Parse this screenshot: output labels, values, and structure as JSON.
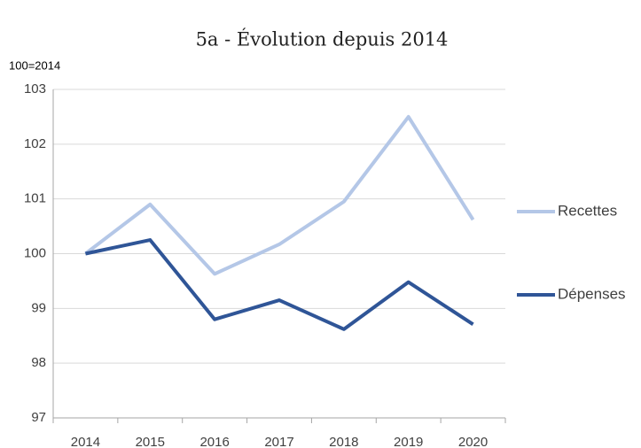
{
  "chart_data": {
    "type": "line",
    "title": "5a - Évolution depuis 2014",
    "y_label": "100=2014",
    "categories": [
      "2014",
      "2015",
      "2016",
      "2017",
      "2018",
      "2019",
      "2020"
    ],
    "series": [
      {
        "name": "Recettes",
        "color": "#b4c7e7",
        "values": [
          100,
          100.9,
          99.63,
          100.17,
          100.95,
          102.5,
          100.62
        ]
      },
      {
        "name": "Dépenses",
        "color": "#2f5597",
        "values": [
          100,
          100.25,
          98.8,
          99.15,
          98.62,
          99.48,
          98.71
        ]
      }
    ],
    "ylim": [
      97,
      103
    ],
    "yticks": [
      97,
      98,
      99,
      100,
      101,
      102,
      103
    ],
    "grid": true,
    "legend": "right"
  }
}
